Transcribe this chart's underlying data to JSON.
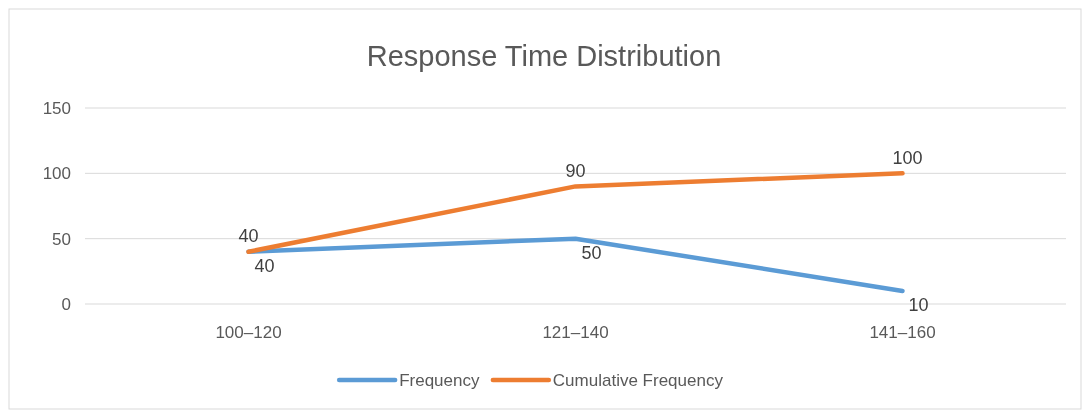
{
  "chart_data": {
    "type": "line",
    "title": "Response Time Distribution",
    "categories": [
      "100–120",
      "121–140",
      "141–160"
    ],
    "series": [
      {
        "name": "Frequency",
        "color": "#5b9bd5",
        "values": [
          40,
          50,
          10
        ]
      },
      {
        "name": "Cumulative Frequency",
        "color": "#ed7d31",
        "values": [
          40,
          90,
          100
        ]
      }
    ],
    "ylim": [
      0,
      150
    ],
    "yticks": [
      0,
      50,
      100,
      150
    ],
    "grid": "y",
    "legend": "bottom",
    "data_labels": true,
    "marker": "none",
    "line_style": "solid"
  }
}
